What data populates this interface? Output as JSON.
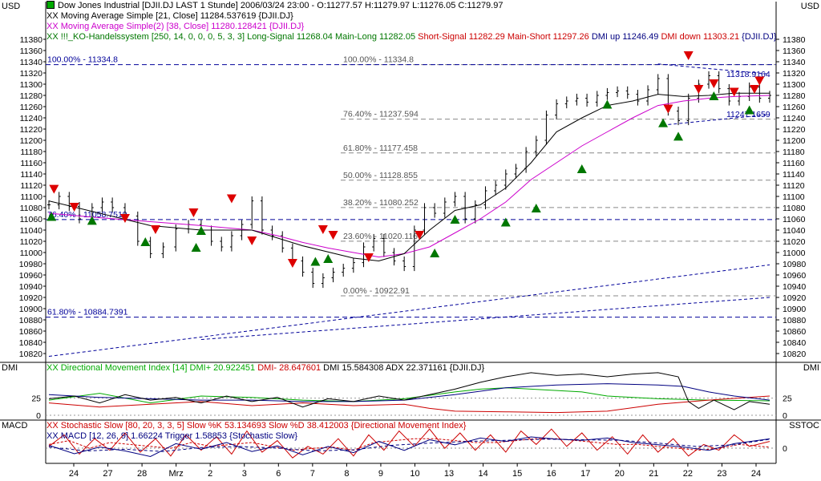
{
  "colors": {
    "price": "#000000",
    "ma21": "#000000",
    "ma38": "#cc00cc",
    "dmi_green": "#00aa00",
    "dmi_red": "#cc0000",
    "dmi_blue": "#000080",
    "signal_up": "#007700",
    "signal_down": "#dd0000",
    "fib_line": "#888888",
    "channel_line": "#000099",
    "axis": "#000000"
  },
  "header": {
    "title": "Dow Jones Industrial [DJII.DJ LAST 1 Stunde] 2006/03/24 23:00 - O:11277.57 H:11279.97 L:11276.05 C:11279.97",
    "line1": "XX Moving Average Simple [21, Close] 11284.537619 {DJII.DJ}",
    "line2": "XX Moving Average Simple(2) [38, Close] 11280.128421 {DJII.DJ}",
    "line3_a": "XX !!!_KO-Handelssystem [250, 14, 0, 0, 0, 5, 3, 3] Long-Signal 11268.04 Main-Long 11282.05 ",
    "line3_b": "Short-Signal 11282.29 Main-Short 11297.26 ",
    "line3_c": "DMI up 11246.49 ",
    "line3_d": "DMI down 11303.21 ",
    "line3_e": "{DJII.DJ}"
  },
  "corners": {
    "top_left": "USD",
    "top_right": "USD",
    "dmi_left": "DMI",
    "dmi_right": "DMI",
    "macd_left": "MACD",
    "sstoc_right": "SSTOC"
  },
  "dmi_panel": {
    "legend_a": "XX Directional Movement Index [14] DMI+ 20.922451 ",
    "legend_b": "DMI- 28.647601 ",
    "legend_c": "DMI 15.584308 ADX 22.371161 {DJII.DJ}",
    "ticks": [
      {
        "v": 25,
        "label": "25"
      },
      {
        "v": 0,
        "label": "0"
      }
    ]
  },
  "macd_panel": {
    "legend1": "XX Stochastic Slow [80, 20, 3, 3, 5] Slow %K 53.134693 Slow %D 38.412003 {Directional Movement Index}",
    "legend2": "XX MACD [12, 26, 9] 1.66224 Trigger 1.58853 {Stochastic Slow}",
    "ticks": [
      {
        "v": 0,
        "label": "0"
      }
    ]
  },
  "chart_data": {
    "type": "candlestick",
    "title": "Dow Jones Industrial [DJII.DJ LAST 1 Stunde]",
    "ylim": [
      10810,
      11390
    ],
    "yticks": [
      10820,
      10840,
      10860,
      10880,
      10900,
      10920,
      10940,
      10960,
      10980,
      11000,
      11020,
      11040,
      11060,
      11080,
      11100,
      11120,
      11140,
      11160,
      11180,
      11200,
      11220,
      11240,
      11260,
      11280,
      11300,
      11320,
      11340,
      11360,
      11380
    ],
    "x_labels": [
      "24",
      "27",
      "28",
      "Mrz",
      "2",
      "3",
      "6",
      "7",
      "8",
      "9",
      "10",
      "13",
      "14",
      "15",
      "16",
      "17",
      "20",
      "21",
      "22",
      "23",
      "24"
    ],
    "close_series": [
      [
        0,
        11085
      ],
      [
        4,
        11100
      ],
      [
        8,
        11082
      ],
      [
        12,
        11060
      ],
      [
        17,
        11080
      ],
      [
        21,
        11090
      ],
      [
        25,
        11080
      ],
      [
        30,
        11065
      ],
      [
        35,
        11020
      ],
      [
        40,
        10998
      ],
      [
        45,
        11010
      ],
      [
        50,
        11042
      ],
      [
        55,
        11050
      ],
      [
        60,
        11040
      ],
      [
        64,
        11020
      ],
      [
        68,
        11010
      ],
      [
        72,
        11030
      ],
      [
        76,
        11050
      ],
      [
        80,
        11092
      ],
      [
        84,
        11040
      ],
      [
        88,
        11030
      ],
      [
        92,
        11008
      ],
      [
        96,
        10985
      ],
      [
        100,
        10965
      ],
      [
        104,
        10945
      ],
      [
        108,
        10955
      ],
      [
        112,
        10965
      ],
      [
        116,
        10972
      ],
      [
        120,
        10982
      ],
      [
        124,
        11010
      ],
      [
        128,
        11025
      ],
      [
        132,
        11000
      ],
      [
        136,
        10985
      ],
      [
        140,
        10975
      ],
      [
        144,
        11040
      ],
      [
        148,
        11080
      ],
      [
        152,
        11070
      ],
      [
        156,
        11090
      ],
      [
        160,
        11100
      ],
      [
        164,
        11060
      ],
      [
        168,
        11085
      ],
      [
        172,
        11110
      ],
      [
        176,
        11120
      ],
      [
        180,
        11140
      ],
      [
        184,
        11150
      ],
      [
        188,
        11180
      ],
      [
        192,
        11200
      ],
      [
        196,
        11245
      ],
      [
        200,
        11265
      ],
      [
        204,
        11270
      ],
      [
        208,
        11275
      ],
      [
        212,
        11268
      ],
      [
        216,
        11280
      ],
      [
        220,
        11285
      ],
      [
        224,
        11288
      ],
      [
        228,
        11282
      ],
      [
        232,
        11270
      ],
      [
        236,
        11290
      ],
      [
        240,
        11310
      ],
      [
        244,
        11252
      ],
      [
        248,
        11235
      ],
      [
        252,
        11275
      ],
      [
        256,
        11300
      ],
      [
        260,
        11315
      ],
      [
        264,
        11292
      ],
      [
        268,
        11270
      ],
      [
        272,
        11278
      ],
      [
        276,
        11295
      ],
      [
        280,
        11275
      ],
      [
        284,
        11280
      ]
    ],
    "ma21": [
      [
        0,
        11092
      ],
      [
        20,
        11070
      ],
      [
        40,
        11048
      ],
      [
        60,
        11040
      ],
      [
        80,
        11040
      ],
      [
        100,
        11012
      ],
      [
        120,
        10990
      ],
      [
        130,
        10985
      ],
      [
        140,
        10998
      ],
      [
        150,
        11040
      ],
      [
        160,
        11075
      ],
      [
        170,
        11085
      ],
      [
        180,
        11115
      ],
      [
        190,
        11160
      ],
      [
        200,
        11215
      ],
      [
        210,
        11240
      ],
      [
        220,
        11262
      ],
      [
        230,
        11270
      ],
      [
        240,
        11282
      ],
      [
        250,
        11278
      ],
      [
        260,
        11280
      ],
      [
        270,
        11284
      ],
      [
        284,
        11284
      ]
    ],
    "ma38": [
      [
        0,
        11070
      ],
      [
        20,
        11062
      ],
      [
        40,
        11055
      ],
      [
        60,
        11048
      ],
      [
        80,
        11040
      ],
      [
        90,
        11030
      ],
      [
        100,
        11018
      ],
      [
        110,
        11008
      ],
      [
        120,
        11000
      ],
      [
        130,
        10992
      ],
      [
        140,
        10998
      ],
      [
        150,
        11010
      ],
      [
        160,
        11035
      ],
      [
        170,
        11060
      ],
      [
        180,
        11090
      ],
      [
        190,
        11130
      ],
      [
        200,
        11160
      ],
      [
        210,
        11190
      ],
      [
        220,
        11215
      ],
      [
        230,
        11240
      ],
      [
        240,
        11262
      ],
      [
        250,
        11270
      ],
      [
        260,
        11275
      ],
      [
        270,
        11278
      ],
      [
        284,
        11280
      ]
    ],
    "fib_levels": [
      {
        "label": "100.00% - 11334.8",
        "value": 11334.8
      },
      {
        "label": "76.40% - 11237.594",
        "value": 11237.594
      },
      {
        "label": "61.80% - 11177.458",
        "value": 11177.458
      },
      {
        "label": "50.00% - 11128.855",
        "value": 11128.855
      },
      {
        "label": "38.20% - 11080.252",
        "value": 11080.252
      },
      {
        "label": "23.60% - 11020.116",
        "value": 11020.116
      },
      {
        "label": "0.00% - 10922.91",
        "value": 10922.91
      }
    ],
    "left_fib": [
      {
        "label": "100.00% - 11334.8",
        "value": 11334.8
      },
      {
        "label": "76.40% - 11058.7519",
        "value": 11058.7519
      },
      {
        "label": "61.80% - 10884.7391",
        "value": 10884.7391
      }
    ],
    "right_labels": [
      {
        "label": "11318.9164",
        "value": 11318.9164
      },
      {
        "label": "11247.1659",
        "value": 11247.1659
      }
    ],
    "buy_signals": [
      [
        1,
        11065
      ],
      [
        17,
        11058
      ],
      [
        38,
        11020
      ],
      [
        58,
        11010
      ],
      [
        60,
        11040
      ],
      [
        105,
        10985
      ],
      [
        110,
        10990
      ],
      [
        152,
        11000
      ],
      [
        160,
        11060
      ],
      [
        180,
        11055
      ],
      [
        192,
        11080
      ],
      [
        210,
        11150
      ],
      [
        220,
        11265
      ],
      [
        242,
        11232
      ],
      [
        248,
        11208
      ],
      [
        262,
        11280
      ],
      [
        276,
        11255
      ]
    ],
    "sell_signals": [
      [
        2,
        11112
      ],
      [
        10,
        11080
      ],
      [
        30,
        11060
      ],
      [
        42,
        11040
      ],
      [
        57,
        11070
      ],
      [
        72,
        11095
      ],
      [
        80,
        11020
      ],
      [
        96,
        10980
      ],
      [
        108,
        11040
      ],
      [
        112,
        11030
      ],
      [
        126,
        10990
      ],
      [
        146,
        11030
      ],
      [
        244,
        11255
      ],
      [
        252,
        11350
      ],
      [
        256,
        11290
      ],
      [
        262,
        11300
      ],
      [
        270,
        11285
      ],
      [
        278,
        11290
      ],
      [
        280,
        11305
      ]
    ],
    "dmi_plus": [
      [
        0,
        22
      ],
      [
        20,
        32
      ],
      [
        40,
        18
      ],
      [
        60,
        28
      ],
      [
        80,
        26
      ],
      [
        100,
        22
      ],
      [
        120,
        20
      ],
      [
        140,
        24
      ],
      [
        160,
        34
      ],
      [
        170,
        38
      ],
      [
        180,
        40
      ],
      [
        200,
        36
      ],
      [
        210,
        34
      ],
      [
        220,
        28
      ],
      [
        240,
        24
      ],
      [
        260,
        22
      ],
      [
        284,
        21
      ]
    ],
    "dmi_minus": [
      [
        0,
        18
      ],
      [
        20,
        12
      ],
      [
        40,
        16
      ],
      [
        60,
        20
      ],
      [
        80,
        14
      ],
      [
        100,
        18
      ],
      [
        120,
        14
      ],
      [
        140,
        16
      ],
      [
        150,
        10
      ],
      [
        160,
        6
      ],
      [
        180,
        5
      ],
      [
        200,
        4
      ],
      [
        220,
        6
      ],
      [
        240,
        16
      ],
      [
        260,
        22
      ],
      [
        284,
        28
      ]
    ],
    "dmi_line": [
      [
        0,
        24
      ],
      [
        10,
        28
      ],
      [
        20,
        18
      ],
      [
        30,
        30
      ],
      [
        40,
        22
      ],
      [
        50,
        26
      ],
      [
        60,
        18
      ],
      [
        70,
        28
      ],
      [
        80,
        20
      ],
      [
        90,
        26
      ],
      [
        100,
        12
      ],
      [
        110,
        24
      ],
      [
        120,
        20
      ],
      [
        130,
        28
      ],
      [
        140,
        22
      ],
      [
        150,
        30
      ],
      [
        160,
        38
      ],
      [
        170,
        48
      ],
      [
        180,
        56
      ],
      [
        190,
        62
      ],
      [
        200,
        58
      ],
      [
        210,
        60
      ],
      [
        220,
        56
      ],
      [
        230,
        60
      ],
      [
        240,
        62
      ],
      [
        248,
        56
      ],
      [
        252,
        20
      ],
      [
        256,
        10
      ],
      [
        262,
        22
      ],
      [
        270,
        8
      ],
      [
        276,
        20
      ],
      [
        284,
        16
      ]
    ],
    "adx": [
      [
        0,
        30
      ],
      [
        20,
        26
      ],
      [
        40,
        24
      ],
      [
        60,
        22
      ],
      [
        80,
        22
      ],
      [
        100,
        20
      ],
      [
        120,
        20
      ],
      [
        140,
        22
      ],
      [
        160,
        30
      ],
      [
        180,
        40
      ],
      [
        200,
        44
      ],
      [
        220,
        46
      ],
      [
        240,
        44
      ],
      [
        250,
        42
      ],
      [
        260,
        34
      ],
      [
        270,
        28
      ],
      [
        284,
        22
      ]
    ],
    "stoch_k": [
      [
        0,
        40
      ],
      [
        6,
        70
      ],
      [
        12,
        20
      ],
      [
        18,
        60
      ],
      [
        24,
        30
      ],
      [
        30,
        75
      ],
      [
        36,
        25
      ],
      [
        42,
        60
      ],
      [
        48,
        15
      ],
      [
        54,
        70
      ],
      [
        60,
        30
      ],
      [
        66,
        65
      ],
      [
        72,
        20
      ],
      [
        78,
        80
      ],
      [
        84,
        25
      ],
      [
        90,
        55
      ],
      [
        96,
        10
      ],
      [
        102,
        40
      ],
      [
        108,
        20
      ],
      [
        114,
        60
      ],
      [
        120,
        15
      ],
      [
        126,
        70
      ],
      [
        132,
        30
      ],
      [
        138,
        80
      ],
      [
        144,
        40
      ],
      [
        150,
        85
      ],
      [
        156,
        35
      ],
      [
        162,
        75
      ],
      [
        168,
        30
      ],
      [
        174,
        70
      ],
      [
        180,
        25
      ],
      [
        186,
        80
      ],
      [
        192,
        45
      ],
      [
        198,
        85
      ],
      [
        204,
        40
      ],
      [
        210,
        75
      ],
      [
        216,
        30
      ],
      [
        222,
        65
      ],
      [
        228,
        20
      ],
      [
        234,
        70
      ],
      [
        240,
        25
      ],
      [
        246,
        60
      ],
      [
        252,
        15
      ],
      [
        258,
        45
      ],
      [
        264,
        30
      ],
      [
        270,
        70
      ],
      [
        276,
        40
      ],
      [
        284,
        53
      ]
    ],
    "stoch_d": [
      [
        0,
        45
      ],
      [
        8,
        55
      ],
      [
        16,
        35
      ],
      [
        24,
        50
      ],
      [
        32,
        45
      ],
      [
        40,
        40
      ],
      [
        48,
        35
      ],
      [
        56,
        50
      ],
      [
        64,
        40
      ],
      [
        72,
        45
      ],
      [
        80,
        50
      ],
      [
        88,
        40
      ],
      [
        96,
        30
      ],
      [
        104,
        35
      ],
      [
        112,
        38
      ],
      [
        120,
        30
      ],
      [
        128,
        50
      ],
      [
        136,
        55
      ],
      [
        144,
        60
      ],
      [
        152,
        60
      ],
      [
        160,
        55
      ],
      [
        168,
        50
      ],
      [
        176,
        50
      ],
      [
        184,
        55
      ],
      [
        192,
        60
      ],
      [
        200,
        60
      ],
      [
        208,
        55
      ],
      [
        216,
        50
      ],
      [
        224,
        45
      ],
      [
        232,
        45
      ],
      [
        240,
        40
      ],
      [
        248,
        35
      ],
      [
        256,
        30
      ],
      [
        264,
        35
      ],
      [
        272,
        45
      ],
      [
        284,
        38
      ]
    ],
    "macd": [
      [
        0,
        0.5
      ],
      [
        10,
        -1
      ],
      [
        20,
        0.2
      ],
      [
        30,
        -0.5
      ],
      [
        40,
        -1.5
      ],
      [
        50,
        0.8
      ],
      [
        60,
        -0.2
      ],
      [
        70,
        1.0
      ],
      [
        80,
        -0.6
      ],
      [
        90,
        0.4
      ],
      [
        100,
        -1.2
      ],
      [
        110,
        0.3
      ],
      [
        120,
        -0.8
      ],
      [
        130,
        1.2
      ],
      [
        140,
        -0.4
      ],
      [
        150,
        1.5
      ],
      [
        160,
        0.6
      ],
      [
        170,
        1.8
      ],
      [
        180,
        1.2
      ],
      [
        190,
        2.0
      ],
      [
        200,
        1.6
      ],
      [
        210,
        1.4
      ],
      [
        220,
        1.8
      ],
      [
        230,
        1.0
      ],
      [
        240,
        0.6
      ],
      [
        250,
        0.2
      ],
      [
        260,
        -0.4
      ],
      [
        270,
        0.8
      ],
      [
        284,
        1.66
      ]
    ],
    "macd_trigger": [
      [
        0,
        0.2
      ],
      [
        15,
        -0.5
      ],
      [
        30,
        -0.2
      ],
      [
        45,
        -0.6
      ],
      [
        60,
        0.1
      ],
      [
        75,
        0.3
      ],
      [
        90,
        0
      ],
      [
        105,
        -0.5
      ],
      [
        120,
        -0.3
      ],
      [
        135,
        0.5
      ],
      [
        150,
        0.9
      ],
      [
        165,
        1.2
      ],
      [
        180,
        1.4
      ],
      [
        195,
        1.6
      ],
      [
        210,
        1.5
      ],
      [
        225,
        1.4
      ],
      [
        240,
        0.9
      ],
      [
        255,
        0.3
      ],
      [
        270,
        0.6
      ],
      [
        284,
        1.59
      ]
    ]
  }
}
